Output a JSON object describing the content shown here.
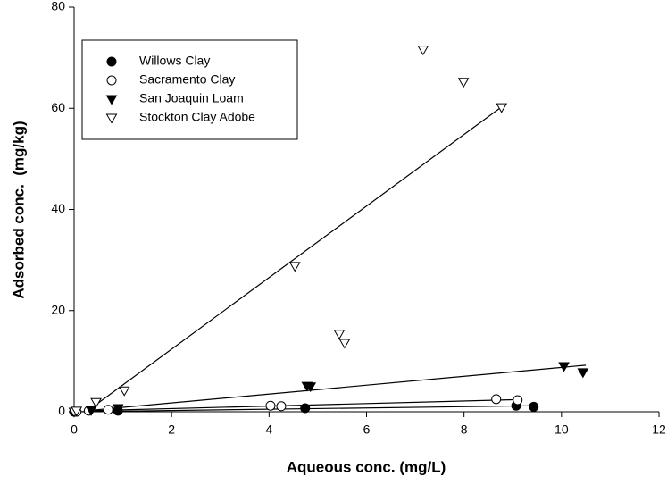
{
  "chart_data": {
    "type": "scatter",
    "xlabel": "Aqueous conc. (mg/L)",
    "ylabel": "Adsorbed conc.  (mg/kg)",
    "xlim": [
      0,
      12
    ],
    "xticks": [
      0,
      2,
      4,
      6,
      8,
      10,
      12
    ],
    "ylim": [
      0,
      80
    ],
    "yticks": [
      0,
      20,
      40,
      60,
      80
    ],
    "legend": "upper left",
    "series": [
      {
        "name": "Willows Clay",
        "color": "#000000",
        "marker": "circle",
        "filled": true,
        "x": [
          0.0,
          0.9,
          4.74,
          9.07,
          9.43
        ],
        "values": [
          0.0,
          0.2,
          0.7,
          1.2,
          1.0
        ],
        "fit": {
          "x": [
            0.0,
            9.5
          ],
          "y": [
            0.0,
            1.2
          ]
        }
      },
      {
        "name": "Sacramento Clay",
        "color": "#000000",
        "marker": "circle",
        "filled": false,
        "x": [
          0.05,
          0.3,
          0.7,
          4.03,
          4.25,
          8.66,
          9.1
        ],
        "values": [
          0.0,
          0.2,
          0.4,
          1.2,
          1.1,
          2.5,
          2.3
        ],
        "fit": {
          "x": [
            0.3,
            9.1
          ],
          "y": [
            0.2,
            2.4
          ]
        }
      },
      {
        "name": "San Joaquin Loam",
        "color": "#000000",
        "marker": "triangle-down",
        "filled": true,
        "x": [
          0.35,
          0.9,
          4.78,
          4.85,
          10.05,
          10.44
        ],
        "values": [
          0.3,
          0.7,
          5.1,
          5.0,
          9.0,
          7.8
        ],
        "fit": {
          "x": [
            0.35,
            10.5
          ],
          "y": [
            0.3,
            9.2
          ]
        }
      },
      {
        "name": "Stockton Clay Adobe",
        "color": "#000000",
        "marker": "triangle-down",
        "filled": false,
        "x": [
          0.0,
          0.05,
          0.45,
          1.03,
          4.53,
          5.44,
          5.55,
          7.16,
          7.99,
          8.77
        ],
        "values": [
          0.0,
          0.2,
          1.9,
          4.2,
          28.8,
          15.4,
          13.6,
          71.6,
          65.2,
          60.2
        ],
        "fit": {
          "x": [
            0.4,
            8.86
          ],
          "y": [
            1.06,
            60.9
          ]
        }
      }
    ]
  }
}
